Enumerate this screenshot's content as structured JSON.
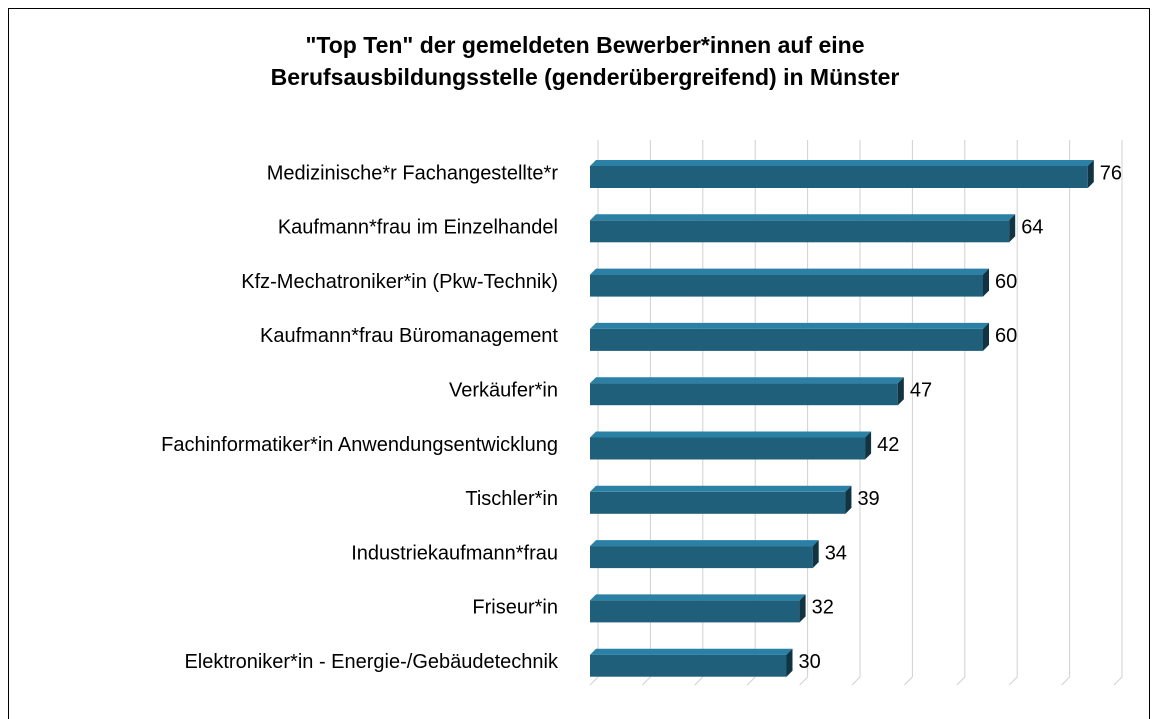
{
  "chart_data": {
    "type": "bar",
    "orientation": "horizontal",
    "title": [
      "\"Top Ten\" der gemeldeten Bewerber*innen auf eine",
      "Berufsausbildungsstelle (genderübergreifend) in Münster"
    ],
    "categories": [
      "Medizinische*r Fachangestellte*r",
      "Kaufmann*frau im Einzelhandel",
      "Kfz-Mechatroniker*in (Pkw-Technik)",
      "Kaufmann*frau Büromanagement",
      "Verkäufer*in",
      "Fachinformatiker*in Anwendungsentwicklung",
      "Tischler*in",
      "Industriekaufmann*frau",
      "Friseur*in",
      "Elektroniker*in - Energie-/Gebäudetechnik"
    ],
    "values": [
      76,
      64,
      60,
      60,
      47,
      42,
      39,
      34,
      32,
      30
    ],
    "color": "#1f5f7a",
    "xlim": [
      0,
      80
    ],
    "xticks": [
      0,
      8,
      16,
      24,
      32,
      40,
      48,
      56,
      64,
      72,
      80
    ],
    "grid": true
  }
}
